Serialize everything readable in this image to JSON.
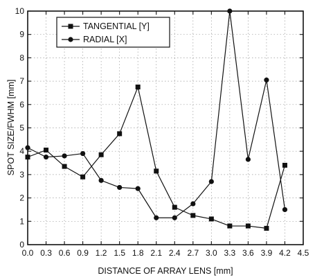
{
  "chart_data": {
    "type": "line",
    "xlabel": "DISTANCE OF ARRAY LENS [mm]",
    "ylabel": "SPOT SIZE/FWHM [mm]",
    "xlim": [
      0,
      4.5
    ],
    "ylim": [
      0,
      10
    ],
    "x_ticks": [
      "0.0",
      "0.3",
      "0.6",
      "0.9",
      "1.2",
      "1.5",
      "1.8",
      "2.1",
      "2.4",
      "2.7",
      "3.0",
      "3.3",
      "3.6",
      "3.9",
      "4.2",
      "4.5"
    ],
    "y_ticks": [
      "0",
      "1",
      "2",
      "3",
      "4",
      "5",
      "6",
      "7",
      "8",
      "9",
      "10"
    ],
    "grid": "dotted",
    "legend_position": "top-left",
    "x": [
      0.0,
      0.3,
      0.6,
      0.9,
      1.2,
      1.5,
      1.8,
      2.1,
      2.4,
      2.7,
      3.0,
      3.3,
      3.6,
      3.9,
      4.2
    ],
    "series": [
      {
        "name": "TANGENTIAL [Y]",
        "marker": "square",
        "color": "#111111",
        "values": [
          3.75,
          4.05,
          3.35,
          2.9,
          3.85,
          4.75,
          6.75,
          3.15,
          1.6,
          1.25,
          1.1,
          0.8,
          0.8,
          0.7,
          3.4
        ]
      },
      {
        "name": "RADIAL [X]",
        "marker": "circle",
        "color": "#111111",
        "values": [
          4.15,
          3.75,
          3.8,
          3.9,
          2.75,
          2.45,
          2.4,
          1.15,
          1.15,
          1.75,
          2.7,
          10.0,
          3.65,
          7.05,
          1.5
        ]
      }
    ]
  }
}
